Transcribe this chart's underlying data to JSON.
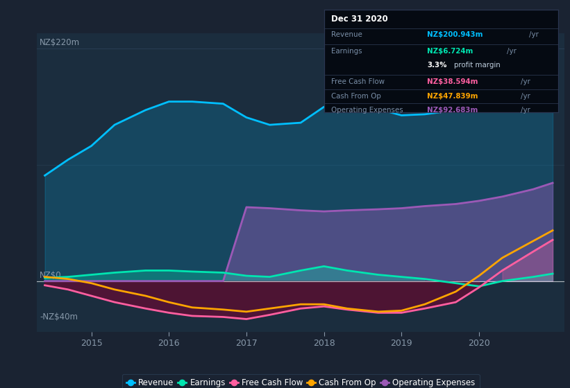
{
  "bg_color": "#1a2332",
  "plot_bg_color": "#1b2d3e",
  "ylim": [
    -48,
    235
  ],
  "xlim": [
    2014.3,
    2021.1
  ],
  "x": [
    2014.4,
    2014.7,
    2015.0,
    2015.3,
    2015.7,
    2016.0,
    2016.3,
    2016.7,
    2017.0,
    2017.3,
    2017.7,
    2018.0,
    2018.3,
    2018.7,
    2019.0,
    2019.3,
    2019.7,
    2020.0,
    2020.3,
    2020.7,
    2020.95
  ],
  "revenue": [
    100,
    115,
    128,
    148,
    162,
    170,
    170,
    168,
    155,
    148,
    150,
    165,
    168,
    163,
    157,
    158,
    162,
    170,
    180,
    193,
    201
  ],
  "earnings": [
    3,
    4,
    6,
    8,
    10,
    10,
    9,
    8,
    5,
    4,
    10,
    14,
    10,
    6,
    4,
    2,
    -2,
    -5,
    0,
    4,
    7
  ],
  "free_cash_flow": [
    -4,
    -8,
    -14,
    -20,
    -26,
    -30,
    -33,
    -34,
    -36,
    -32,
    -26,
    -24,
    -27,
    -30,
    -30,
    -26,
    -20,
    -6,
    10,
    28,
    39
  ],
  "cash_from_op": [
    4,
    2,
    -2,
    -8,
    -14,
    -20,
    -25,
    -27,
    -29,
    -26,
    -22,
    -22,
    -26,
    -29,
    -28,
    -22,
    -10,
    5,
    22,
    38,
    48
  ],
  "op_expenses": [
    0,
    0,
    0,
    0,
    0,
    0,
    0,
    0,
    70,
    69,
    67,
    66,
    67,
    68,
    69,
    71,
    73,
    76,
    80,
    87,
    93
  ],
  "revenue_color": "#00bfff",
  "earnings_color": "#00e5b0",
  "fcf_color": "#ff5fa0",
  "cfo_color": "#ffa500",
  "opex_color": "#9b59b6",
  "xtick_labels": [
    "2015",
    "2016",
    "2017",
    "2018",
    "2019",
    "2020"
  ],
  "xtick_pos": [
    2015,
    2016,
    2017,
    2018,
    2019,
    2020
  ],
  "ylabel_220": "NZ$220m",
  "ylabel_0": "NZ$0",
  "ylabel_n40": "-NZ$40m",
  "info_date": "Dec 31 2020",
  "info_revenue_val": "NZ$200.943m",
  "info_earnings_val": "NZ$6.724m",
  "info_margin_pct": "3.3%",
  "info_margin_text": "profit margin",
  "info_fcf_val": "NZ$38.594m",
  "info_cfo_val": "NZ$47.839m",
  "info_opex_val": "NZ$92.683m",
  "legend_labels": [
    "Revenue",
    "Earnings",
    "Free Cash Flow",
    "Cash From Op",
    "Operating Expenses"
  ]
}
